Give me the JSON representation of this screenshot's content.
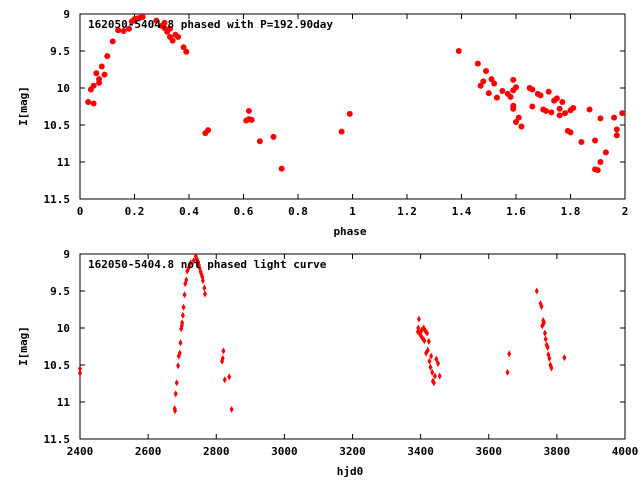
{
  "chart_data": [
    {
      "type": "scatter",
      "title": "162050-5404.8 phased with P=192.90day",
      "xlabel": "phase",
      "ylabel": "I[mag]",
      "xlim": [
        0,
        2
      ],
      "ylim": [
        9,
        11.5
      ],
      "y_inverted": true,
      "grid": false,
      "marker": "filled circle",
      "color": "#ff0000",
      "x_ticks": [
        "0",
        "0.2",
        "0.4",
        "0.6",
        "0.8",
        "1",
        "1.2",
        "1.4",
        "1.6",
        "1.8",
        "2"
      ],
      "y_ticks": [
        "9",
        "9.5",
        "10",
        "10.5",
        "11",
        "11.5"
      ],
      "x_tick_values": [
        0,
        0.2,
        0.4,
        0.6,
        0.8,
        1.0,
        1.2,
        1.4,
        1.6,
        1.8,
        2.0
      ],
      "y_tick_values": [
        9,
        9.5,
        10,
        10.5,
        11,
        11.5
      ],
      "points": [
        [
          0.03,
          10.19
        ],
        [
          0.04,
          10.02
        ],
        [
          0.05,
          9.97
        ],
        [
          0.05,
          10.21
        ],
        [
          0.06,
          9.8
        ],
        [
          0.07,
          9.88
        ],
        [
          0.07,
          9.93
        ],
        [
          0.08,
          9.71
        ],
        [
          0.09,
          9.82
        ],
        [
          0.1,
          9.57
        ],
        [
          0.12,
          9.37
        ],
        [
          0.14,
          9.22
        ],
        [
          0.16,
          9.23
        ],
        [
          0.18,
          9.2
        ],
        [
          0.19,
          9.1
        ],
        [
          0.2,
          9.07
        ],
        [
          0.2,
          9.09
        ],
        [
          0.21,
          9.06
        ],
        [
          0.22,
          9.05
        ],
        [
          0.23,
          9.04
        ],
        [
          0.28,
          9.09
        ],
        [
          0.3,
          9.16
        ],
        [
          0.31,
          9.12
        ],
        [
          0.31,
          9.19
        ],
        [
          0.32,
          9.24
        ],
        [
          0.33,
          9.2
        ],
        [
          0.33,
          9.31
        ],
        [
          0.34,
          9.36
        ],
        [
          0.35,
          9.28
        ],
        [
          0.36,
          9.31
        ],
        [
          0.38,
          9.45
        ],
        [
          0.39,
          9.51
        ],
        [
          0.46,
          10.61
        ],
        [
          0.47,
          10.57
        ],
        [
          0.61,
          10.44
        ],
        [
          0.62,
          10.31
        ],
        [
          0.62,
          10.42
        ],
        [
          0.63,
          10.43
        ],
        [
          0.66,
          10.72
        ],
        [
          0.71,
          10.66
        ],
        [
          0.74,
          11.09
        ],
        [
          0.96,
          10.59
        ],
        [
          0.99,
          10.35
        ],
        [
          1.39,
          9.5
        ],
        [
          1.46,
          9.67
        ],
        [
          1.47,
          9.97
        ],
        [
          1.48,
          9.91
        ],
        [
          1.49,
          9.77
        ],
        [
          1.5,
          10.07
        ],
        [
          1.51,
          9.88
        ],
        [
          1.52,
          9.94
        ],
        [
          1.53,
          10.13
        ],
        [
          1.55,
          10.04
        ],
        [
          1.57,
          10.08
        ],
        [
          1.58,
          10.12
        ],
        [
          1.59,
          10.24
        ],
        [
          1.59,
          10.28
        ],
        [
          1.59,
          9.89
        ],
        [
          1.59,
          10.03
        ],
        [
          1.6,
          9.99
        ],
        [
          1.6,
          10.46
        ],
        [
          1.61,
          10.4
        ],
        [
          1.62,
          10.52
        ],
        [
          1.65,
          10.0
        ],
        [
          1.66,
          10.02
        ],
        [
          1.66,
          10.25
        ],
        [
          1.68,
          10.08
        ],
        [
          1.69,
          10.1
        ],
        [
          1.7,
          10.29
        ],
        [
          1.71,
          10.31
        ],
        [
          1.72,
          10.05
        ],
        [
          1.73,
          10.33
        ],
        [
          1.74,
          10.17
        ],
        [
          1.75,
          10.14
        ],
        [
          1.76,
          10.28
        ],
        [
          1.76,
          10.37
        ],
        [
          1.77,
          10.19
        ],
        [
          1.78,
          10.34
        ],
        [
          1.79,
          10.58
        ],
        [
          1.8,
          10.3
        ],
        [
          1.8,
          10.6
        ],
        [
          1.81,
          10.27
        ],
        [
          1.84,
          10.73
        ],
        [
          1.87,
          10.29
        ],
        [
          1.89,
          11.1
        ],
        [
          1.89,
          10.71
        ],
        [
          1.9,
          11.11
        ],
        [
          1.91,
          11.0
        ],
        [
          1.91,
          10.41
        ],
        [
          1.93,
          10.87
        ],
        [
          1.96,
          10.4
        ],
        [
          1.97,
          10.64
        ],
        [
          1.97,
          10.56
        ],
        [
          1.99,
          10.34
        ]
      ]
    },
    {
      "type": "scatter",
      "title": "162050-5404.8 not phased light curve",
      "xlabel": "hjd0",
      "ylabel": "I[mag]",
      "xlim": [
        2400,
        4000
      ],
      "ylim": [
        9,
        11.5
      ],
      "y_inverted": true,
      "grid": false,
      "marker": "filled diamond",
      "color": "#ff0000",
      "x_ticks": [
        "2400",
        "2600",
        "2800",
        "3000",
        "3200",
        "3400",
        "3600",
        "3800",
        "4000"
      ],
      "y_ticks": [
        "9",
        "9.5",
        "10",
        "10.5",
        "11",
        "11.5"
      ],
      "x_tick_values": [
        2400,
        2600,
        2800,
        3000,
        3200,
        3400,
        3600,
        3800,
        4000
      ],
      "y_tick_values": [
        9,
        9.5,
        10,
        10.5,
        11,
        11.5
      ],
      "points": [
        [
          2400,
          10.55
        ],
        [
          2400,
          10.61
        ],
        [
          2678,
          11.09
        ],
        [
          2679,
          11.12
        ],
        [
          2681,
          10.89
        ],
        [
          2684,
          10.74
        ],
        [
          2688,
          10.51
        ],
        [
          2690,
          10.38
        ],
        [
          2693,
          10.34
        ],
        [
          2695,
          10.2
        ],
        [
          2697,
          10.01
        ],
        [
          2699,
          9.97
        ],
        [
          2700,
          9.93
        ],
        [
          2702,
          9.83
        ],
        [
          2704,
          9.72
        ],
        [
          2707,
          9.55
        ],
        [
          2709,
          9.4
        ],
        [
          2712,
          9.35
        ],
        [
          2715,
          9.23
        ],
        [
          2720,
          9.18
        ],
        [
          2725,
          9.12
        ],
        [
          2734,
          9.09
        ],
        [
          2740,
          9.03
        ],
        [
          2743,
          9.07
        ],
        [
          2746,
          9.1
        ],
        [
          2749,
          9.15
        ],
        [
          2751,
          9.19
        ],
        [
          2754,
          9.24
        ],
        [
          2757,
          9.28
        ],
        [
          2759,
          9.31
        ],
        [
          2761,
          9.36
        ],
        [
          2765,
          9.46
        ],
        [
          2767,
          9.54
        ],
        [
          2817,
          10.45
        ],
        [
          2819,
          10.41
        ],
        [
          2821,
          10.31
        ],
        [
          2825,
          10.7
        ],
        [
          2838,
          10.66
        ],
        [
          2845,
          11.1
        ],
        [
          3392,
          10.05
        ],
        [
          3393,
          10.0
        ],
        [
          3395,
          9.88
        ],
        [
          3397,
          10.07
        ],
        [
          3400,
          10.1
        ],
        [
          3403,
          10.03
        ],
        [
          3406,
          10.14
        ],
        [
          3409,
          10.0
        ],
        [
          3411,
          10.17
        ],
        [
          3414,
          10.04
        ],
        [
          3416,
          10.34
        ],
        [
          3419,
          10.07
        ],
        [
          3421,
          10.3
        ],
        [
          3424,
          10.18
        ],
        [
          3426,
          10.45
        ],
        [
          3429,
          10.53
        ],
        [
          3431,
          10.38
        ],
        [
          3434,
          10.6
        ],
        [
          3436,
          10.72
        ],
        [
          3439,
          10.74
        ],
        [
          3442,
          10.65
        ],
        [
          3446,
          10.42
        ],
        [
          3451,
          10.48
        ],
        [
          3456,
          10.65
        ],
        [
          3655,
          10.6
        ],
        [
          3660,
          10.35
        ],
        [
          3741,
          9.5
        ],
        [
          3752,
          9.67
        ],
        [
          3755,
          9.71
        ],
        [
          3757,
          9.97
        ],
        [
          3760,
          9.9
        ],
        [
          3762,
          9.93
        ],
        [
          3765,
          10.07
        ],
        [
          3767,
          10.15
        ],
        [
          3770,
          10.23
        ],
        [
          3773,
          10.26
        ],
        [
          3775,
          10.36
        ],
        [
          3778,
          10.41
        ],
        [
          3781,
          10.5
        ],
        [
          3784,
          10.54
        ],
        [
          3822,
          10.4
        ]
      ]
    }
  ]
}
